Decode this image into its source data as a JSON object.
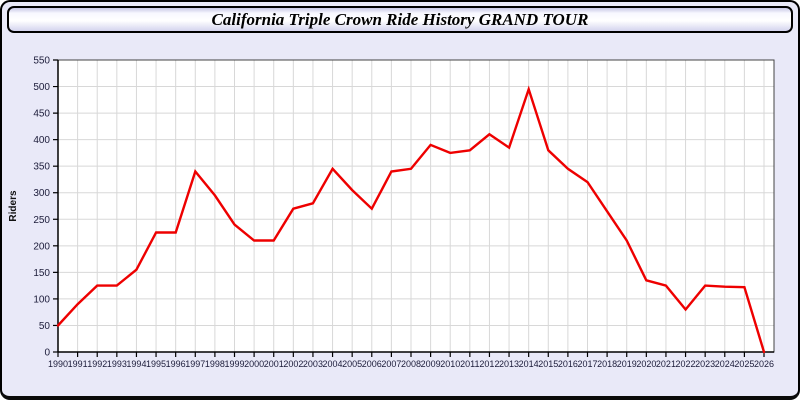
{
  "window": {
    "title": "California Triple Crown Ride History GRAND TOUR"
  },
  "chart_data": {
    "type": "line",
    "title": "California Triple Crown Ride History GRAND TOUR",
    "xlabel": "",
    "ylabel": "Riders",
    "x": [
      1990,
      1991,
      1992,
      1993,
      1994,
      1995,
      1996,
      1997,
      1998,
      1999,
      2000,
      2001,
      2002,
      2003,
      2004,
      2005,
      2006,
      2007,
      2008,
      2009,
      2010,
      2011,
      2012,
      2013,
      2014,
      2015,
      2016,
      2017,
      2018,
      2019,
      2020,
      2021,
      2022,
      2023,
      2024,
      2025,
      2026
    ],
    "series": [
      {
        "name": "Riders",
        "values": [
          50,
          90,
          125,
          125,
          155,
          225,
          225,
          340,
          295,
          240,
          210,
          210,
          270,
          280,
          345,
          305,
          270,
          340,
          345,
          390,
          375,
          380,
          410,
          385,
          495,
          380,
          345,
          320,
          265,
          210,
          135,
          125,
          80,
          125,
          123,
          122,
          0
        ]
      }
    ],
    "ylim": [
      0,
      550
    ],
    "y_ticks": [
      0,
      50,
      100,
      150,
      200,
      250,
      300,
      350,
      400,
      450,
      500,
      550
    ],
    "grid": true,
    "legend_position": "none",
    "colors": {
      "line": "#ee0000",
      "grid": "#d8d8d8",
      "plot_background": "#ffffff",
      "plot_border": "#444444",
      "axis": "#000000",
      "tick_text": "#1c1c3a",
      "window_background": "#e9e9f8"
    }
  }
}
